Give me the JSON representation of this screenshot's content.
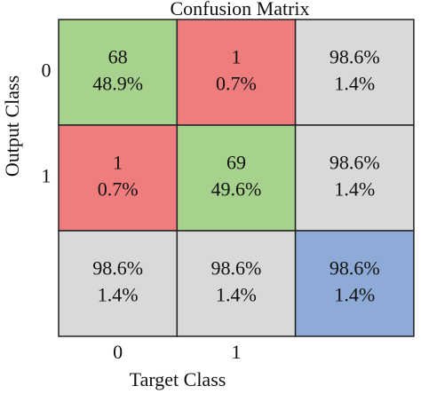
{
  "chart_data": {
    "type": "confusion_matrix",
    "title": "Confusion Matrix",
    "x_label": "Target Class",
    "y_label": "Output Class",
    "x_categories": [
      "0",
      "1"
    ],
    "y_categories": [
      "0",
      "1"
    ],
    "cells": [
      [
        {
          "lines": [
            "68",
            "48.9%"
          ],
          "color": "#a7d28d"
        },
        {
          "lines": [
            "1",
            "0.7%"
          ],
          "color": "#f07d7e"
        },
        {
          "lines": [
            "98.6%",
            "1.4%"
          ],
          "color": "#d9d9d9"
        }
      ],
      [
        {
          "lines": [
            "1",
            "0.7%"
          ],
          "color": "#f07d7e"
        },
        {
          "lines": [
            "69",
            "49.6%"
          ],
          "color": "#a7d28d"
        },
        {
          "lines": [
            "98.6%",
            "1.4%"
          ],
          "color": "#d9d9d9"
        }
      ],
      [
        {
          "lines": [
            "98.6%",
            "1.4%"
          ],
          "color": "#d9d9d9"
        },
        {
          "lines": [
            "98.6%",
            "1.4%"
          ],
          "color": "#d9d9d9"
        },
        {
          "lines": [
            "98.6%",
            "1.4%"
          ],
          "color": "#8eaad6"
        }
      ]
    ]
  }
}
